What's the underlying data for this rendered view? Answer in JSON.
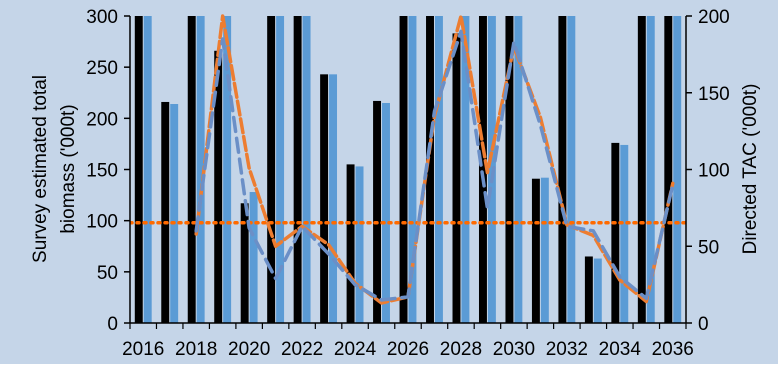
{
  "chart_data": {
    "type": "bar",
    "background": "#c5d5e8",
    "years": [
      2016,
      2017,
      2018,
      2019,
      2020,
      2021,
      2022,
      2023,
      2024,
      2025,
      2026,
      2027,
      2028,
      2029,
      2030,
      2031,
      2032,
      2033,
      2034,
      2035,
      2036
    ],
    "x_tick_labels": [
      "2016",
      "2018",
      "2020",
      "2022",
      "2024",
      "2026",
      "2028",
      "2030",
      "2032",
      "2034",
      "2036"
    ],
    "y_left": {
      "label_lines": [
        "Survey estimated total",
        "biomass ('000t)"
      ],
      "ylim": [
        0,
        300
      ],
      "ticks": [
        "0",
        "50",
        "100",
        "150",
        "200",
        "250",
        "300"
      ]
    },
    "y_right": {
      "label": "Directed TAC ('000t)",
      "ylim": [
        0,
        200
      ],
      "ticks": [
        "0",
        "50",
        "100",
        "150",
        "200"
      ]
    },
    "bar_series": [
      {
        "color": "#000000",
        "axis": "left",
        "values": [
          300,
          216,
          300,
          266,
          117,
          300,
          300,
          243,
          155,
          217,
          300,
          300,
          283,
          300,
          300,
          141,
          300,
          65,
          176,
          300,
          300
        ]
      },
      {
        "color": "#5b9bd5",
        "axis": "left",
        "values": [
          300,
          214,
          300,
          300,
          128,
          300,
          300,
          243,
          153,
          215,
          300,
          300,
          300,
          300,
          300,
          142,
          300,
          63,
          174,
          300,
          300
        ]
      }
    ],
    "line_series": [
      {
        "color": "#ed7d31",
        "style": "dashed",
        "axis": "right",
        "values": [
          null,
          null,
          58,
          200,
          101,
          50,
          63,
          51,
          26,
          13,
          17,
          135,
          200,
          98,
          180,
          134,
          64,
          57,
          28,
          14,
          91
        ]
      },
      {
        "color": "#6b8fc7",
        "style": "dashed",
        "axis": "right",
        "values": [
          null,
          null,
          60,
          185,
          62,
          29,
          63,
          45,
          25,
          15,
          17,
          138,
          190,
          75,
          183,
          129,
          63,
          60,
          30,
          16,
          90
        ]
      }
    ],
    "reference_line": {
      "color": "#ff6a00",
      "style": "dotted",
      "axis": "left",
      "value": 98
    }
  }
}
